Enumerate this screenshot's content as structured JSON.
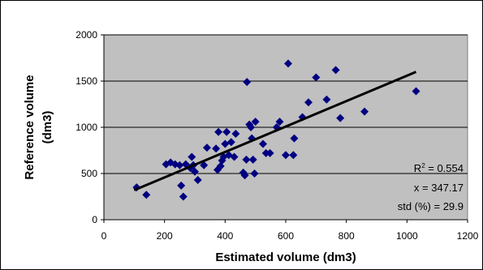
{
  "chart_data": {
    "type": "scatter",
    "xlabel": "Estimated volume (dm3)",
    "ylabel_line1": "Reference volume",
    "ylabel_line2": "(dm3)",
    "xlim": [
      0,
      1200
    ],
    "ylim": [
      0,
      2000
    ],
    "x_ticks": [
      "0",
      "200",
      "400",
      "600",
      "800",
      "1000",
      "1200"
    ],
    "y_ticks": [
      "0",
      "500",
      "1000",
      "1500",
      "2000"
    ],
    "grid": "horizontal",
    "plot_background": "#c0c0c0",
    "marker_color": "#000080",
    "trendline_color": "#000000",
    "trendline": {
      "x": [
        100,
        1030
      ],
      "y": [
        320,
        1600
      ]
    },
    "annotations": {
      "r2_prefix": "R",
      "r2_sup": "2",
      "r2_value": " = 0.554",
      "x_text": "x = 347.17",
      "std_text": "std (%) = 29.9"
    },
    "points": [
      {
        "x": 108,
        "y": 350
      },
      {
        "x": 140,
        "y": 270
      },
      {
        "x": 205,
        "y": 600
      },
      {
        "x": 220,
        "y": 620
      },
      {
        "x": 235,
        "y": 600
      },
      {
        "x": 250,
        "y": 590
      },
      {
        "x": 255,
        "y": 370
      },
      {
        "x": 262,
        "y": 250
      },
      {
        "x": 270,
        "y": 600
      },
      {
        "x": 285,
        "y": 560
      },
      {
        "x": 290,
        "y": 680
      },
      {
        "x": 295,
        "y": 590
      },
      {
        "x": 300,
        "y": 520
      },
      {
        "x": 310,
        "y": 430
      },
      {
        "x": 330,
        "y": 590
      },
      {
        "x": 340,
        "y": 780
      },
      {
        "x": 370,
        "y": 770
      },
      {
        "x": 375,
        "y": 540
      },
      {
        "x": 378,
        "y": 950
      },
      {
        "x": 385,
        "y": 580
      },
      {
        "x": 390,
        "y": 640
      },
      {
        "x": 395,
        "y": 680
      },
      {
        "x": 400,
        "y": 820
      },
      {
        "x": 405,
        "y": 950
      },
      {
        "x": 412,
        "y": 700
      },
      {
        "x": 420,
        "y": 840
      },
      {
        "x": 430,
        "y": 680
      },
      {
        "x": 435,
        "y": 930
      },
      {
        "x": 460,
        "y": 510
      },
      {
        "x": 465,
        "y": 480
      },
      {
        "x": 470,
        "y": 650
      },
      {
        "x": 472,
        "y": 1490
      },
      {
        "x": 480,
        "y": 1030
      },
      {
        "x": 485,
        "y": 1000
      },
      {
        "x": 488,
        "y": 880
      },
      {
        "x": 492,
        "y": 650
      },
      {
        "x": 497,
        "y": 500
      },
      {
        "x": 500,
        "y": 1060
      },
      {
        "x": 525,
        "y": 820
      },
      {
        "x": 535,
        "y": 720
      },
      {
        "x": 548,
        "y": 720
      },
      {
        "x": 570,
        "y": 1000
      },
      {
        "x": 580,
        "y": 1060
      },
      {
        "x": 600,
        "y": 700
      },
      {
        "x": 608,
        "y": 1690
      },
      {
        "x": 625,
        "y": 700
      },
      {
        "x": 628,
        "y": 880
      },
      {
        "x": 655,
        "y": 1110
      },
      {
        "x": 675,
        "y": 1270
      },
      {
        "x": 700,
        "y": 1540
      },
      {
        "x": 735,
        "y": 1300
      },
      {
        "x": 765,
        "y": 1620
      },
      {
        "x": 780,
        "y": 1100
      },
      {
        "x": 860,
        "y": 1170
      },
      {
        "x": 1030,
        "y": 1390
      }
    ]
  }
}
